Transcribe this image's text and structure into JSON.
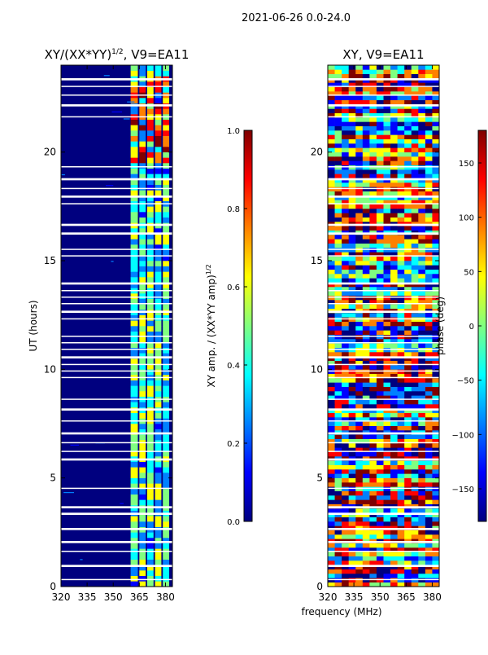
{
  "figure_title": "2021-06-26 0.0-24.0",
  "shared_xlabel": "frequency (MHz)",
  "colors": {
    "jet": [
      "#00007f",
      "#0000ff",
      "#0080ff",
      "#00ffff",
      "#80ff80",
      "#ffff00",
      "#ff8000",
      "#ff0000",
      "#7f0000"
    ],
    "gap": "#ffffff"
  },
  "chart_data": [
    {
      "type": "heatmap",
      "title_main": "XY/(XX*YY)",
      "title_exp": "1/2",
      "title_suffix": ", V9=EA11",
      "xlabel": "",
      "ylabel": "UT (hours)",
      "xlim": [
        320,
        384
      ],
      "ylim": [
        0,
        24
      ],
      "xticks": [
        320,
        335,
        350,
        365,
        380
      ],
      "yticks": [
        0,
        5,
        10,
        15,
        20
      ],
      "channel_bands_mhz": [
        [
          360,
          364
        ],
        [
          365,
          368.5
        ],
        [
          369.5,
          373
        ],
        [
          374,
          377.5
        ],
        [
          378.5,
          382
        ]
      ],
      "colorbar": {
        "label_main": "XY amp. / (XX*YY amp)",
        "label_exp": "1/2",
        "range": [
          0.0,
          1.0
        ],
        "ticks": [
          "0.0",
          "0.2",
          "0.4",
          "0.6",
          "0.8",
          "1.0"
        ]
      }
    },
    {
      "type": "heatmap",
      "title": "XY, V9=EA11",
      "xlabel": "frequency (MHz)",
      "ylabel": "",
      "xlim": [
        320,
        384
      ],
      "ylim": [
        0,
        24
      ],
      "xticks": [
        320,
        335,
        350,
        365,
        380
      ],
      "yticks": [
        0,
        5,
        10,
        15,
        20
      ],
      "colorbar": {
        "label": "phase (deg)",
        "range": [
          -180,
          180
        ],
        "ticks": [
          "150",
          "100",
          "50",
          "0",
          "−50",
          "−100",
          "−150"
        ]
      }
    }
  ],
  "gaps_ut_hours": [
    0.3,
    0.35,
    0.9,
    1.0,
    1.6,
    1.65,
    2.0,
    2.1,
    2.6,
    2.7,
    3.3,
    3.4,
    3.6,
    3.7,
    4.5,
    4.55,
    5.8,
    5.9,
    6.2,
    6.25,
    6.6,
    6.65,
    7.0,
    7.1,
    7.6,
    7.65,
    8.1,
    8.2,
    8.6,
    8.65,
    9.6,
    9.65,
    9.9,
    9.95,
    10.2,
    10.25,
    10.5,
    10.6,
    10.9,
    10.95,
    11.2,
    11.25,
    11.5,
    11.55,
    12.3,
    12.35,
    12.6,
    12.7,
    13.0,
    13.05,
    13.3,
    13.35,
    13.6,
    13.65,
    13.9,
    14.0,
    15.2,
    15.25,
    15.5,
    15.55,
    16.2,
    16.3,
    16.6,
    16.7,
    17.6,
    17.65,
    17.9,
    18.0,
    18.3,
    18.35,
    18.7,
    18.8,
    19.3,
    19.35,
    21.6,
    21.65,
    22.1,
    22.2,
    22.6,
    22.65,
    23.0,
    23.05,
    23.3,
    23.4
  ]
}
